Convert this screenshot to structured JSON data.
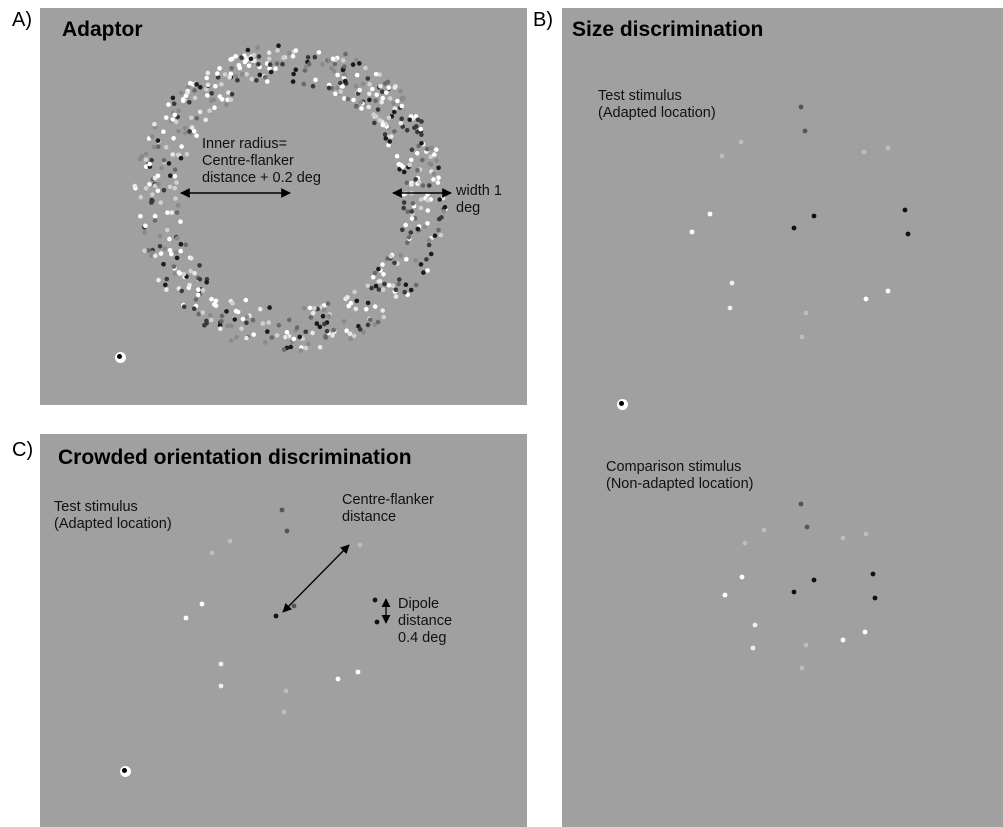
{
  "panel_a": {
    "letter": "A)",
    "title": "Adaptor",
    "inner_radius_label": [
      "Inner radius=",
      "Centre-flanker",
      "distance + 0.2 deg"
    ],
    "width_label": [
      "width 1",
      "deg"
    ]
  },
  "panel_b": {
    "letter": "B)",
    "title": "Size discrimination",
    "test_label": [
      "Test stimulus",
      "(Adapted location)"
    ],
    "comparison_label": [
      "Comparison stimulus",
      "(Non-adapted location)"
    ]
  },
  "panel_c": {
    "letter": "C)",
    "title": "Crowded orientation discrimination",
    "test_label": [
      "Test stimulus",
      "(Adapted location)"
    ],
    "centre_flanker_label": [
      "Centre-flanker",
      "distance"
    ],
    "dipole_label": [
      "Dipole",
      "distance",
      "0.4 deg"
    ]
  },
  "colors": {
    "background": "#a0a0a0",
    "dot_white": "#ffffff",
    "dot_black": "#111111"
  }
}
